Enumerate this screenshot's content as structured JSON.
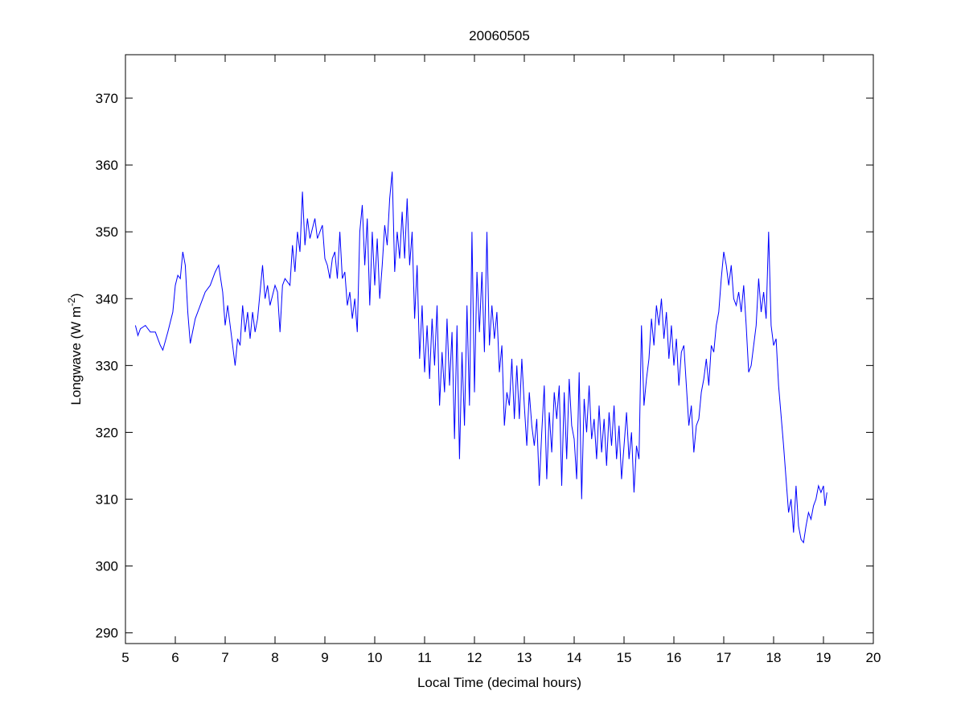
{
  "chart_data": {
    "type": "line",
    "title": "20060505",
    "xlabel": "Local Time (decimal hours)",
    "ylabel": "Longwave (W m",
    "ylabel_superscript": "-2",
    "ylabel_suffix": ")",
    "xlim": [
      5,
      20
    ],
    "ylim": [
      288.4,
      376.5
    ],
    "xticks": [
      5,
      6,
      7,
      8,
      9,
      10,
      11,
      12,
      13,
      14,
      15,
      16,
      17,
      18,
      19,
      20
    ],
    "yticks": [
      290,
      300,
      310,
      320,
      330,
      340,
      350,
      360,
      370
    ],
    "grid": false,
    "series": [
      {
        "name": "Longwave",
        "color": "#0000ff",
        "x": [
          5.2,
          5.25,
          5.3,
          5.4,
          5.5,
          5.6,
          5.7,
          5.75,
          5.85,
          5.95,
          6.0,
          6.05,
          6.1,
          6.15,
          6.2,
          6.25,
          6.3,
          6.4,
          6.5,
          6.6,
          6.7,
          6.8,
          6.87,
          6.95,
          7.0,
          7.05,
          7.1,
          7.2,
          7.25,
          7.3,
          7.35,
          7.4,
          7.45,
          7.5,
          7.55,
          7.6,
          7.65,
          7.75,
          7.8,
          7.85,
          7.9,
          8.0,
          8.05,
          8.1,
          8.15,
          8.2,
          8.3,
          8.35,
          8.4,
          8.45,
          8.5,
          8.55,
          8.6,
          8.65,
          8.7,
          8.8,
          8.85,
          8.95,
          9.0,
          9.05,
          9.1,
          9.15,
          9.2,
          9.25,
          9.3,
          9.35,
          9.4,
          9.45,
          9.5,
          9.55,
          9.6,
          9.65,
          9.7,
          9.75,
          9.8,
          9.85,
          9.9,
          9.95,
          10.0,
          10.05,
          10.1,
          10.15,
          10.2,
          10.25,
          10.3,
          10.35,
          10.4,
          10.45,
          10.5,
          10.55,
          10.6,
          10.65,
          10.7,
          10.75,
          10.8,
          10.85,
          10.9,
          10.95,
          11.0,
          11.05,
          11.1,
          11.15,
          11.2,
          11.25,
          11.3,
          11.35,
          11.4,
          11.45,
          11.5,
          11.55,
          11.6,
          11.65,
          11.7,
          11.75,
          11.8,
          11.85,
          11.9,
          11.95,
          12.0,
          12.05,
          12.1,
          12.15,
          12.2,
          12.25,
          12.3,
          12.35,
          12.4,
          12.45,
          12.5,
          12.55,
          12.6,
          12.65,
          12.7,
          12.75,
          12.8,
          12.85,
          12.9,
          12.95,
          13.0,
          13.05,
          13.1,
          13.15,
          13.2,
          13.25,
          13.3,
          13.35,
          13.4,
          13.45,
          13.5,
          13.55,
          13.6,
          13.65,
          13.7,
          13.75,
          13.8,
          13.85,
          13.9,
          13.95,
          14.0,
          14.05,
          14.1,
          14.15,
          14.2,
          14.25,
          14.3,
          14.35,
          14.4,
          14.45,
          14.5,
          14.55,
          14.6,
          14.65,
          14.7,
          14.75,
          14.8,
          14.85,
          14.9,
          14.95,
          15.0,
          15.05,
          15.1,
          15.15,
          15.2,
          15.25,
          15.3,
          15.35,
          15.4,
          15.45,
          15.5,
          15.55,
          15.6,
          15.65,
          15.7,
          15.75,
          15.8,
          15.85,
          15.9,
          15.95,
          16.0,
          16.05,
          16.1,
          16.15,
          16.2,
          16.25,
          16.3,
          16.35,
          16.4,
          16.45,
          16.5,
          16.55,
          16.6,
          16.65,
          16.7,
          16.75,
          16.8,
          16.85,
          16.9,
          16.95,
          17.0,
          17.05,
          17.1,
          17.15,
          17.2,
          17.25,
          17.3,
          17.35,
          17.4,
          17.45,
          17.5,
          17.55,
          17.6,
          17.65,
          17.7,
          17.75,
          17.8,
          17.85,
          17.9,
          17.95,
          18.0,
          18.05,
          18.1,
          18.2,
          18.25,
          18.3,
          18.35,
          18.4,
          18.45,
          18.5,
          18.55,
          18.6,
          18.65,
          18.7,
          18.75,
          18.8,
          18.85,
          18.9,
          18.95,
          19.0,
          19.03,
          19.07
        ],
        "y": [
          336,
          334.5,
          335.5,
          336,
          335,
          335,
          333,
          332.3,
          335,
          338,
          342,
          343.5,
          343,
          347,
          345,
          338,
          333.3,
          337,
          339,
          341,
          342,
          344,
          345,
          341,
          336,
          339,
          336,
          330,
          334,
          333,
          339,
          335,
          338,
          334,
          338,
          335,
          337,
          345,
          340,
          342,
          339,
          342,
          341,
          335,
          342,
          343,
          342,
          348,
          344,
          350,
          347,
          356,
          348,
          352,
          349,
          352,
          349,
          351,
          346,
          345,
          343,
          346,
          347,
          343,
          350,
          343,
          344,
          339,
          341,
          337,
          340,
          335,
          350,
          354,
          345,
          352,
          339,
          350,
          342,
          349,
          340,
          345,
          351,
          348,
          355,
          359,
          344,
          350,
          346,
          353,
          346,
          355,
          345,
          350,
          337,
          345,
          331,
          339,
          329,
          336,
          328,
          337,
          330,
          339,
          324,
          332,
          326,
          337,
          327,
          335,
          319,
          336,
          316,
          332,
          321,
          339,
          324,
          350,
          326,
          344,
          335,
          344,
          332,
          350,
          333,
          339,
          334,
          338,
          329,
          333,
          321,
          326,
          324,
          331,
          322,
          330,
          322,
          331,
          324,
          318,
          326,
          321,
          318,
          322,
          312,
          320,
          327,
          313,
          323,
          317,
          326,
          322,
          327,
          312,
          326,
          316,
          328,
          321,
          319,
          313,
          329,
          310,
          325,
          320,
          327,
          319,
          322,
          316,
          324,
          317,
          322,
          315,
          323,
          318,
          324,
          316,
          321,
          313,
          318,
          323,
          316,
          320,
          311,
          318,
          316,
          336,
          324,
          328,
          331,
          337,
          333,
          339,
          336,
          340,
          334,
          338,
          331,
          336,
          330,
          334,
          327,
          332,
          333,
          327,
          321,
          324,
          317,
          321,
          322,
          326,
          328,
          331,
          327,
          333,
          332,
          336,
          338,
          343,
          347,
          345,
          342,
          345,
          340,
          339,
          341,
          338,
          342,
          336,
          329,
          330,
          333,
          336,
          343,
          338,
          341,
          337,
          350,
          336,
          333,
          334,
          327,
          318,
          313,
          308,
          310,
          305,
          312,
          306,
          304,
          303.5,
          306,
          308,
          307,
          309,
          310,
          312,
          311,
          312,
          309,
          311
        ]
      }
    ]
  }
}
